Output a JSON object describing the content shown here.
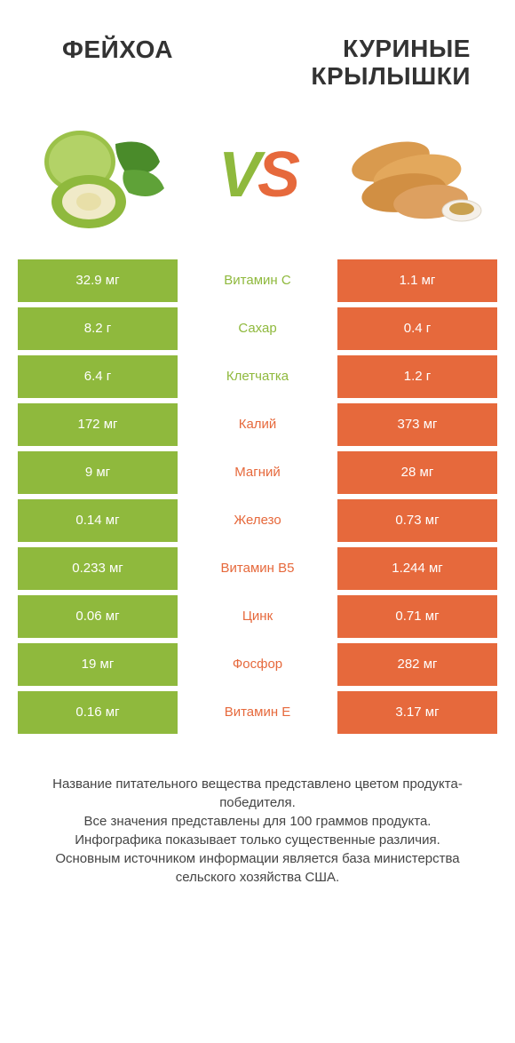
{
  "header": {
    "left": "ФЕЙХОА",
    "right_line1": "КУРИНЫЕ",
    "right_line2": "КРЫЛЫШКИ"
  },
  "vs": {
    "v": "V",
    "s": "S"
  },
  "colors": {
    "left": "#8fb93d",
    "right": "#e6693c",
    "background": "#ffffff",
    "text_dark": "#333333"
  },
  "rows": [
    {
      "left": "32.9 мг",
      "mid": "Витамин C",
      "right": "1.1 мг",
      "mid_color": "#8fb93d"
    },
    {
      "left": "8.2 г",
      "mid": "Сахар",
      "right": "0.4 г",
      "mid_color": "#8fb93d"
    },
    {
      "left": "6.4 г",
      "mid": "Клетчатка",
      "right": "1.2 г",
      "mid_color": "#8fb93d"
    },
    {
      "left": "172 мг",
      "mid": "Калий",
      "right": "373 мг",
      "mid_color": "#e6693c"
    },
    {
      "left": "9 мг",
      "mid": "Магний",
      "right": "28 мг",
      "mid_color": "#e6693c"
    },
    {
      "left": "0.14 мг",
      "mid": "Железо",
      "right": "0.73 мг",
      "mid_color": "#e6693c"
    },
    {
      "left": "0.233 мг",
      "mid": "Витамин B5",
      "right": "1.244 мг",
      "mid_color": "#e6693c"
    },
    {
      "left": "0.06 мг",
      "mid": "Цинк",
      "right": "0.71 мг",
      "mid_color": "#e6693c"
    },
    {
      "left": "19 мг",
      "mid": "Фосфор",
      "right": "282 мг",
      "mid_color": "#e6693c"
    },
    {
      "left": "0.16 мг",
      "mid": "Витамин E",
      "right": "3.17 мг",
      "mid_color": "#e6693c"
    }
  ],
  "footer": {
    "line1": "Название питательного вещества представлено цветом продукта-победителя.",
    "line2": "Все значения представлены для 100 граммов продукта.",
    "line3": "Инфографика показывает только существенные различия.",
    "line4": "Основным источником информации является база министерства сельского хозяйства США."
  }
}
